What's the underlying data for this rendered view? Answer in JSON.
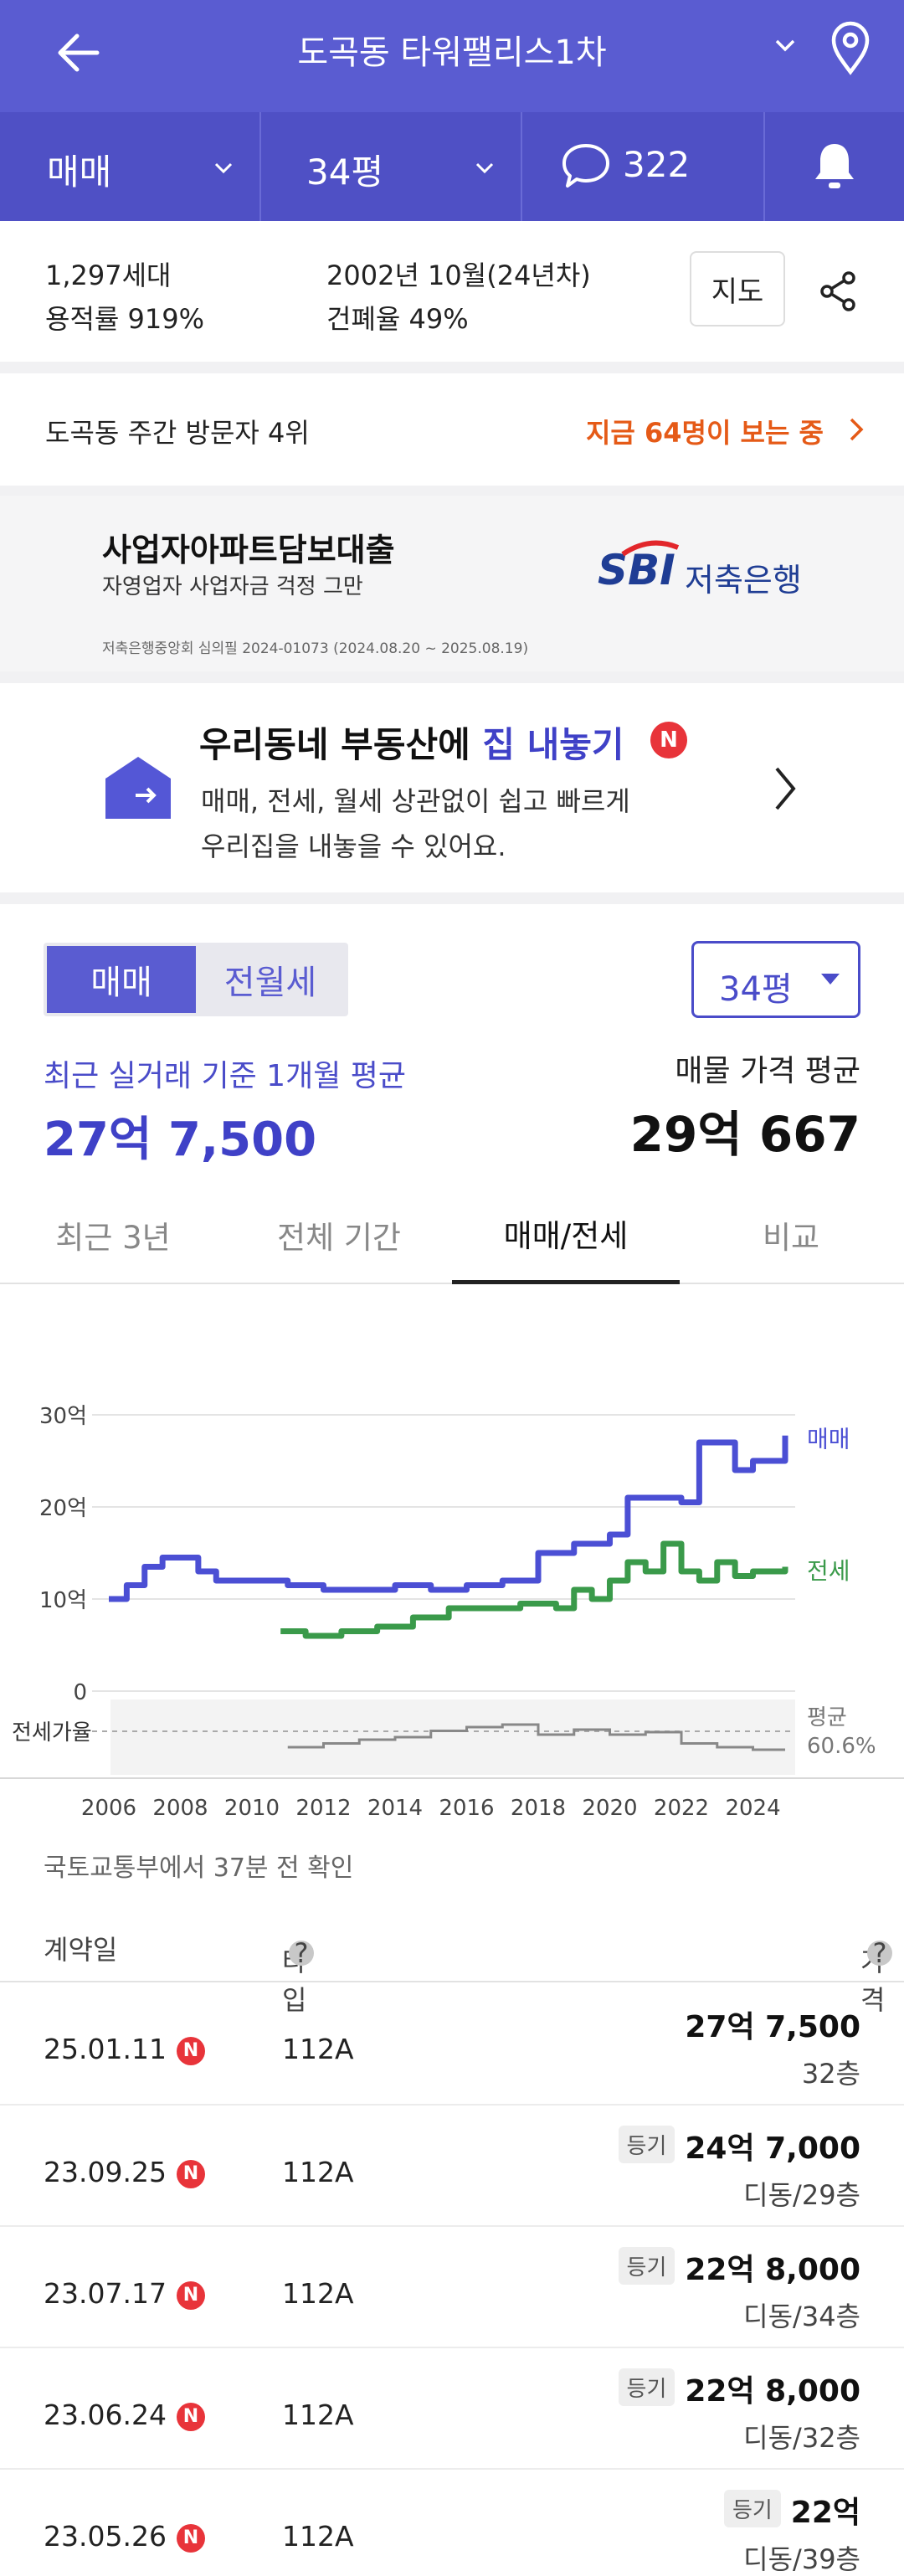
{
  "header": {
    "title": "도곡동 타워팰리스1차",
    "back_icon": "arrow-left-icon",
    "dropdown_icon": "chevron-down-icon",
    "location_icon": "map-pin-icon"
  },
  "subheader": {
    "deal_type": "매매",
    "size": "34평",
    "comment_count": "322",
    "comment_icon": "speech-bubble-icon",
    "bell_icon": "bell-icon"
  },
  "info": {
    "households": "1,297세대",
    "built": "2002년 10월(24년차)",
    "far": "용적률 919%",
    "bcr": "건폐율 49%",
    "map_button": "지도",
    "share_icon": "share-icon"
  },
  "visitors": {
    "rank": "도곡동 주간 방문자 4위",
    "watching": "지금 64명이 보는 중"
  },
  "ad": {
    "title": "사업자아파트담보대출",
    "subtitle": "자영업자 사업자금 걱정 그만",
    "fine_print": "저축은행중앙회 심의필 2024-01073 (2024.08.20 ~ 2025.08.19)",
    "brand": "SBI",
    "bank": "저축은행"
  },
  "listing": {
    "title_plain": "우리동네 부동산에 ",
    "title_accent": "집 내놓기",
    "badge": "N",
    "desc1": "매매, 전세, 월세 상관없이 쉽고 빠르게",
    "desc2": "우리집을 내놓을 수 있어요.",
    "accent": "#3f41c7"
  },
  "trade": {
    "segment_active": "매매",
    "segment_inactive": "전월세",
    "size_select": "34평",
    "recent_label": "최근 실거래 기준 1개월 평균",
    "recent_value": "27억 7,500",
    "listing_label": "매물 가격 평균",
    "listing_value": "29억 667",
    "tabs": [
      "최근 3년",
      "전체 기간",
      "매매/전세",
      "비교"
    ],
    "active_tab": 2
  },
  "chart_data": {
    "type": "line",
    "x_ticks": [
      "2006",
      "2008",
      "2010",
      "2012",
      "2014",
      "2016",
      "2018",
      "2020",
      "2022",
      "2024"
    ],
    "y_ticks": [
      "30억",
      "20억",
      "10억",
      "0"
    ],
    "ylim": [
      0,
      30
    ],
    "series": [
      {
        "name": "매매",
        "color": "#4b4fd4",
        "points": [
          [
            2006,
            10
          ],
          [
            2006.5,
            11.5
          ],
          [
            2007,
            13.5
          ],
          [
            2007.5,
            14.5
          ],
          [
            2008,
            14.5
          ],
          [
            2008.5,
            13
          ],
          [
            2009,
            12
          ],
          [
            2010,
            12
          ],
          [
            2011,
            11.5
          ],
          [
            2012,
            11
          ],
          [
            2013,
            11
          ],
          [
            2014,
            11.5
          ],
          [
            2015,
            11
          ],
          [
            2016,
            11.5
          ],
          [
            2017,
            12
          ],
          [
            2018,
            15
          ],
          [
            2019,
            16
          ],
          [
            2020,
            17
          ],
          [
            2020.5,
            21
          ],
          [
            2021,
            21
          ],
          [
            2022,
            20.5
          ],
          [
            2022.5,
            27
          ],
          [
            2023,
            27
          ],
          [
            2023.5,
            24
          ],
          [
            2024,
            25
          ],
          [
            2024.6,
            25
          ],
          [
            2024.9,
            27.75
          ]
        ]
      },
      {
        "name": "전세",
        "color": "#3a9a4a",
        "points": [
          [
            2010.8,
            6.5
          ],
          [
            2011.5,
            6
          ],
          [
            2012.5,
            6.5
          ],
          [
            2013.5,
            7
          ],
          [
            2014.5,
            8
          ],
          [
            2015.5,
            9
          ],
          [
            2016.5,
            9
          ],
          [
            2017.5,
            9.5
          ],
          [
            2018.5,
            9
          ],
          [
            2019,
            11
          ],
          [
            2019.5,
            10
          ],
          [
            2020,
            12
          ],
          [
            2020.5,
            14
          ],
          [
            2021,
            13
          ],
          [
            2021.5,
            16
          ],
          [
            2022,
            13
          ],
          [
            2022.5,
            12
          ],
          [
            2023,
            14
          ],
          [
            2023.5,
            12.5
          ],
          [
            2024,
            13
          ],
          [
            2024.9,
            13.5
          ]
        ]
      },
      {
        "name": "전세가율",
        "color": "#888888",
        "points": [
          [
            2011,
            52
          ],
          [
            2012,
            55
          ],
          [
            2013,
            58
          ],
          [
            2014,
            60
          ],
          [
            2015,
            65
          ],
          [
            2016,
            68
          ],
          [
            2017,
            70
          ],
          [
            2018,
            62
          ],
          [
            2019,
            66
          ],
          [
            2020,
            62
          ],
          [
            2021,
            64
          ],
          [
            2022,
            55
          ],
          [
            2023,
            52
          ],
          [
            2024,
            50
          ],
          [
            2024.9,
            50
          ]
        ]
      }
    ],
    "series_labels": [
      "매매",
      "전세"
    ],
    "ratio_label": "전세가율",
    "ratio_avg_label": "평균",
    "ratio_avg_value": "60.6%"
  },
  "source_note": "국토교통부에서 37분 전 확인",
  "table": {
    "headers": [
      "계약일",
      "타입",
      "가격"
    ],
    "rows": [
      {
        "date": "25.01.11",
        "type": "112A",
        "price": "27억 7,500",
        "floor": "32층",
        "registered": ""
      },
      {
        "date": "23.09.25",
        "type": "112A",
        "price": "24억 7,000",
        "floor": "디동/29층",
        "registered": "등기"
      },
      {
        "date": "23.07.17",
        "type": "112A",
        "price": "22억 8,000",
        "floor": "디동/34층",
        "registered": "등기"
      },
      {
        "date": "23.06.24",
        "type": "112A",
        "price": "22억 8,000",
        "floor": "디동/32층",
        "registered": "등기"
      },
      {
        "date": "23.05.26",
        "type": "112A",
        "price": "22억",
        "floor": "디동/39층",
        "registered": "등기"
      }
    ],
    "new_badge": "N",
    "help_icon": "question-circle-icon"
  }
}
